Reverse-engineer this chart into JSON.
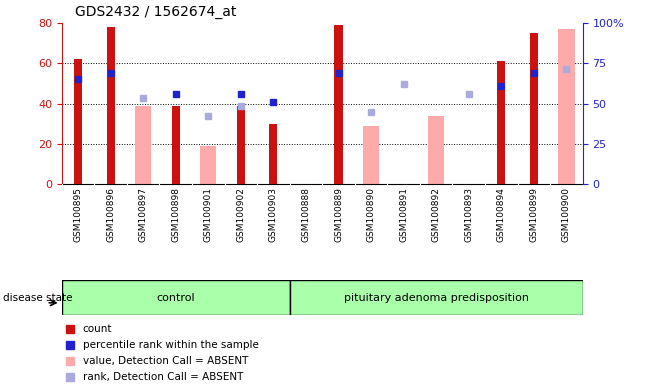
{
  "title": "GDS2432 / 1562674_at",
  "samples": [
    "GSM100895",
    "GSM100896",
    "GSM100897",
    "GSM100898",
    "GSM100901",
    "GSM100902",
    "GSM100903",
    "GSM100888",
    "GSM100889",
    "GSM100890",
    "GSM100891",
    "GSM100892",
    "GSM100893",
    "GSM100894",
    "GSM100899",
    "GSM100900"
  ],
  "n_control": 7,
  "n_adenoma": 9,
  "count": [
    62,
    78,
    0,
    39,
    0,
    39,
    30,
    0,
    79,
    0,
    0,
    0,
    0,
    61,
    75,
    0
  ],
  "percentile_rank": [
    52,
    55,
    null,
    45,
    null,
    45,
    41,
    null,
    55,
    null,
    null,
    null,
    null,
    49,
    55,
    null
  ],
  "value_absent": [
    null,
    null,
    39,
    null,
    19,
    null,
    null,
    null,
    null,
    29,
    null,
    34,
    null,
    null,
    null,
    77
  ],
  "rank_absent": [
    null,
    null,
    43,
    null,
    34,
    39,
    null,
    null,
    null,
    36,
    50,
    null,
    45,
    null,
    null,
    57
  ],
  "red_color": "#cc1111",
  "pink_color": "#ffaaaa",
  "blue_color": "#2222cc",
  "blue_light_color": "#aaaadd",
  "legend_items": [
    "count",
    "percentile rank within the sample",
    "value, Detection Call = ABSENT",
    "rank, Detection Call = ABSENT"
  ],
  "ylim_left": [
    0,
    80
  ],
  "ylim_right": [
    0,
    100
  ],
  "yticks_left": [
    0,
    20,
    40,
    60,
    80
  ],
  "yticks_right": [
    0,
    25,
    50,
    75,
    100
  ],
  "ytick_right_labels": [
    "0",
    "25",
    "50",
    "75",
    "100%"
  ],
  "gray_bg": "#d4d4d4",
  "green_bg": "#aaffaa"
}
